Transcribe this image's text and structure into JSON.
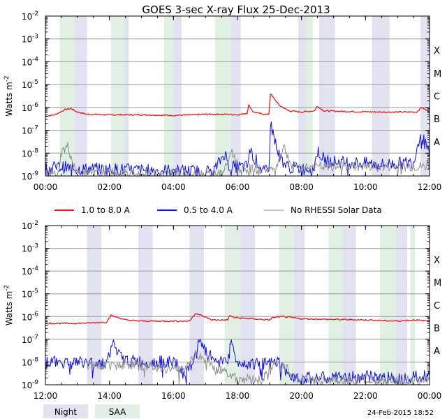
{
  "chart_data": [
    {
      "type": "line",
      "title": "GOES 3-sec X-ray Flux   25-Dec-2013",
      "ylabel": "Watts m",
      "ylabel_sup": "-2",
      "yscale": "log",
      "ylim_exp": [
        -9,
        -2
      ],
      "ytick_exponents": [
        -9,
        -8,
        -7,
        -6,
        -5,
        -4,
        -3,
        -2
      ],
      "flare_classes": [
        {
          "label": "X",
          "exp": -4
        },
        {
          "label": "M",
          "exp": -5
        },
        {
          "label": "C",
          "exp": -6
        },
        {
          "label": "B",
          "exp": -7
        },
        {
          "label": "A",
          "exp": -8
        }
      ],
      "xlim_hours": [
        0,
        12
      ],
      "xtick_labels": [
        "00:00",
        "02:00",
        "04:00",
        "06:00",
        "08:00",
        "10:00",
        "12:00"
      ],
      "night_intervals": [
        [
          0.9,
          1.3
        ],
        [
          2.45,
          2.6
        ],
        [
          4.0,
          4.25
        ],
        [
          5.8,
          6.1
        ],
        [
          7.9,
          8.15
        ],
        [
          8.55,
          9.05
        ],
        [
          10.2,
          10.75
        ],
        [
          11.72,
          12.0
        ]
      ],
      "saa_intervals": [
        [
          0.45,
          0.9
        ],
        [
          2.05,
          2.45
        ],
        [
          3.7,
          4.0
        ],
        [
          5.3,
          5.8
        ],
        [
          8.15,
          8.35
        ]
      ],
      "series": [
        {
          "name": "1.0 to 8.0 A",
          "points": [
            [
              0,
              -6.38
            ],
            [
              0.3,
              -6.32
            ],
            [
              0.6,
              -6.1
            ],
            [
              0.8,
              -6.05
            ],
            [
              1.0,
              -6.2
            ],
            [
              1.3,
              -6.3
            ],
            [
              2.0,
              -6.32
            ],
            [
              3.0,
              -6.32
            ],
            [
              4.0,
              -6.35
            ],
            [
              5.0,
              -6.3
            ],
            [
              5.7,
              -6.3
            ],
            [
              6.0,
              -6.32
            ],
            [
              6.3,
              -6.25
            ],
            [
              6.35,
              -5.9
            ],
            [
              6.5,
              -6.2
            ],
            [
              6.8,
              -6.3
            ],
            [
              6.98,
              -6.3
            ],
            [
              7.03,
              -5.4
            ],
            [
              7.3,
              -5.9
            ],
            [
              7.6,
              -6.15
            ],
            [
              8.0,
              -6.2
            ],
            [
              8.4,
              -6.15
            ],
            [
              8.5,
              -5.95
            ],
            [
              8.7,
              -6.15
            ],
            [
              9.5,
              -6.18
            ],
            [
              10.5,
              -6.2
            ],
            [
              11.0,
              -6.2
            ],
            [
              11.6,
              -6.2
            ],
            [
              11.75,
              -6.0
            ],
            [
              12.0,
              -6.2
            ]
          ]
        },
        {
          "name": "0.5 to 4.0 A",
          "points": [
            [
              0,
              -8.65
            ],
            [
              0.5,
              -8.6
            ],
            [
              1.0,
              -8.7
            ],
            [
              2.0,
              -8.7
            ],
            [
              3.0,
              -8.75
            ],
            [
              4.0,
              -8.75
            ],
            [
              5.0,
              -8.8
            ],
            [
              5.3,
              -8.7
            ],
            [
              5.6,
              -8.0
            ],
            [
              5.75,
              -8.6
            ],
            [
              6.3,
              -8.6
            ],
            [
              6.4,
              -7.9
            ],
            [
              6.8,
              -8.8
            ],
            [
              6.98,
              -8.8
            ],
            [
              7.03,
              -6.7
            ],
            [
              7.3,
              -8.1
            ],
            [
              7.55,
              -8.6
            ],
            [
              8.0,
              -8.7
            ],
            [
              8.4,
              -8.6
            ],
            [
              8.5,
              -7.9
            ],
            [
              8.75,
              -8.35
            ],
            [
              9.5,
              -8.4
            ],
            [
              10.5,
              -8.5
            ],
            [
              11.5,
              -8.4
            ],
            [
              11.72,
              -7.1
            ],
            [
              12.0,
              -8.1
            ]
          ]
        },
        {
          "name": "No RHESSI Solar Data",
          "points": [
            [
              0,
              -8.9
            ],
            [
              0.4,
              -8.9
            ],
            [
              0.5,
              -7.95
            ],
            [
              0.7,
              -7.7
            ],
            [
              0.9,
              -8.6
            ],
            [
              1.0,
              -8.9
            ],
            [
              5.5,
              -8.9
            ],
            [
              5.65,
              -8.6
            ],
            [
              5.8,
              -7.9
            ],
            [
              6.1,
              -8.7
            ],
            [
              7.2,
              -8.7
            ],
            [
              7.35,
              -8.0
            ],
            [
              7.45,
              -7.7
            ],
            [
              7.7,
              -8.6
            ],
            [
              11.9,
              -8.6
            ],
            [
              12.0,
              -8.0
            ]
          ]
        }
      ]
    },
    {
      "type": "line",
      "ylabel": "Watts m",
      "ylabel_sup": "-2",
      "yscale": "log",
      "ylim_exp": [
        -9,
        -2
      ],
      "ytick_exponents": [
        -9,
        -8,
        -7,
        -6,
        -5,
        -4,
        -3,
        -2
      ],
      "flare_classes": [
        {
          "label": "X",
          "exp": -4
        },
        {
          "label": "M",
          "exp": -5
        },
        {
          "label": "C",
          "exp": -6
        },
        {
          "label": "B",
          "exp": -7
        },
        {
          "label": "A",
          "exp": -8
        }
      ],
      "xlim_hours": [
        12,
        24
      ],
      "xtick_labels": [
        "12:00",
        "14:00",
        "16:00",
        "18:00",
        "20:00",
        "22:00",
        "00:00"
      ],
      "night_intervals": [
        [
          13.3,
          13.75
        ],
        [
          14.9,
          15.35
        ],
        [
          16.5,
          16.95
        ],
        [
          18.1,
          18.55
        ],
        [
          19.75,
          20.1
        ],
        [
          21.3,
          21.7
        ],
        [
          22.95,
          23.3
        ]
      ],
      "saa_intervals": [
        [
          17.6,
          18.1
        ],
        [
          19.3,
          19.75
        ],
        [
          20.85,
          21.3
        ],
        [
          22.45,
          22.95
        ],
        [
          23.4,
          23.55
        ]
      ],
      "series": [
        {
          "name": "1.0 to 8.0 A",
          "points": [
            [
              12,
              -6.3
            ],
            [
              13.0,
              -6.3
            ],
            [
              13.9,
              -6.25
            ],
            [
              14.05,
              -5.95
            ],
            [
              14.5,
              -6.15
            ],
            [
              15.0,
              -6.2
            ],
            [
              16.5,
              -6.2
            ],
            [
              16.7,
              -5.85
            ],
            [
              17.2,
              -6.15
            ],
            [
              17.7,
              -6.15
            ],
            [
              17.75,
              -5.95
            ],
            [
              17.9,
              -6.05
            ],
            [
              19.0,
              -6.15
            ],
            [
              19.1,
              -6.05
            ],
            [
              19.4,
              -6.0
            ],
            [
              20.0,
              -6.1
            ],
            [
              22.0,
              -6.15
            ],
            [
              23.0,
              -6.2
            ],
            [
              23.5,
              -6.15
            ],
            [
              24.0,
              -6.2
            ]
          ]
        },
        {
          "name": "0.5 to 4.0 A",
          "points": [
            [
              12,
              -8.0
            ],
            [
              13.0,
              -8.0
            ],
            [
              13.5,
              -8.05
            ],
            [
              13.9,
              -8.05
            ],
            [
              14.1,
              -7.2
            ],
            [
              14.4,
              -7.9
            ],
            [
              15.0,
              -8.0
            ],
            [
              16.0,
              -8.0
            ],
            [
              16.4,
              -8.6
            ],
            [
              16.6,
              -8.0
            ],
            [
              16.75,
              -7.15
            ],
            [
              17.1,
              -7.7
            ],
            [
              17.4,
              -8.0
            ],
            [
              17.75,
              -7.75
            ],
            [
              17.78,
              -7.0
            ],
            [
              17.95,
              -8.0
            ],
            [
              19.0,
              -8.1
            ],
            [
              19.3,
              -8.0
            ],
            [
              19.5,
              -8.5
            ],
            [
              20.0,
              -8.7
            ],
            [
              21.0,
              -8.7
            ],
            [
              22.0,
              -8.65
            ],
            [
              23.0,
              -8.7
            ],
            [
              24.0,
              -8.6
            ]
          ]
        },
        {
          "name": "No RHESSI Solar Data",
          "points": [
            [
              13.3,
              -8.1
            ],
            [
              13.9,
              -8.15
            ],
            [
              14.4,
              -8.1
            ],
            [
              15.2,
              -8.2
            ],
            [
              16.1,
              -8.3
            ],
            [
              16.3,
              -8.4
            ],
            [
              16.5,
              -8.0
            ],
            [
              16.7,
              -7.7
            ],
            [
              17.0,
              -7.9
            ],
            [
              17.4,
              -8.3
            ],
            [
              17.7,
              -8.5
            ],
            [
              18.0,
              -8.7
            ],
            [
              18.8,
              -8.8
            ],
            [
              19.0,
              -8.2
            ],
            [
              19.4,
              -8.1
            ],
            [
              19.8,
              -8.7
            ],
            [
              20.4,
              -8.8
            ],
            [
              22.2,
              -8.8
            ],
            [
              24.0,
              -8.8
            ]
          ]
        }
      ]
    }
  ],
  "legend": {
    "entries": [
      {
        "label": "1.0 to 8.0 A",
        "color": "#e02020"
      },
      {
        "label": "0.5 to 4.0 A",
        "color": "#1010e0"
      },
      {
        "label": "No RHESSI Solar Data",
        "color": "#909090"
      }
    ]
  },
  "night_saa_legend": {
    "night_label": "Night",
    "saa_label": "SAA",
    "night_color": "#e2e2f1",
    "saa_color": "#e1f0e3"
  },
  "footer_timestamp": "24-Feb-2015 18:52"
}
